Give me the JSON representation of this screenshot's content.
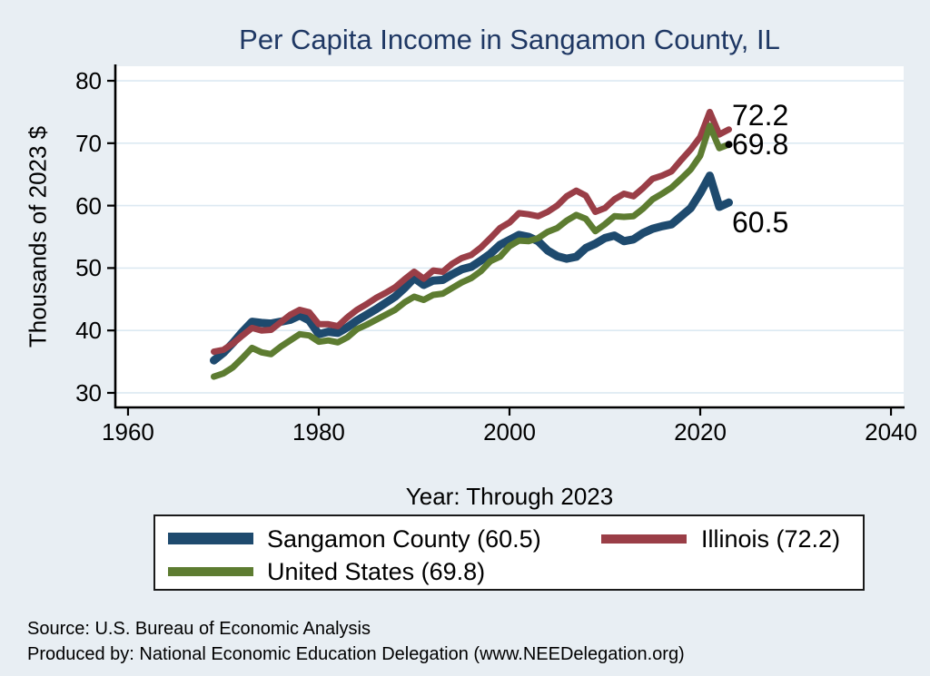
{
  "title": "Per Capita Income in Sangamon County, IL",
  "axes": {
    "y_label": "Thousands of 2023 $",
    "x_label": "Year: Through 2023",
    "y_ticks": [
      30,
      40,
      50,
      60,
      70,
      80
    ],
    "x_ticks": [
      1960,
      1980,
      2000,
      2020,
      2040
    ]
  },
  "legend": {
    "items": [
      {
        "label": "Sangamon County (60.5)",
        "color": "#1e4a6e"
      },
      {
        "label": "Illinois (72.2)",
        "color": "#9a3e47"
      },
      {
        "label": "United States (69.8)",
        "color": "#5d7c31"
      }
    ]
  },
  "footer": {
    "source_line": "Source: U.S. Bureau of Economic Analysis",
    "produced_line": "Produced by: National Economic Education Delegation (www.NEEDelegation.org)"
  },
  "colors": {
    "background": "#e8eef3",
    "plot_background": "#ffffff",
    "gridline": "#dce9f2",
    "axis": "#000000",
    "title": "#1f3864"
  },
  "chart_data": {
    "type": "line",
    "title": "Per Capita Income in Sangamon County, IL",
    "xlabel": "Year: Through 2023",
    "ylabel": "Thousands of 2023 $",
    "xlim": [
      1958.67,
      2041.33
    ],
    "ylim": [
      27.67,
      82.33
    ],
    "xticks": [
      1960,
      1980,
      2000,
      2020,
      2040
    ],
    "yticks": [
      30,
      40,
      50,
      60,
      70,
      80
    ],
    "grid": "horizontal",
    "legend_position": "bottom",
    "x": [
      1969,
      1970,
      1971,
      1972,
      1973,
      1974,
      1975,
      1976,
      1977,
      1978,
      1979,
      1980,
      1981,
      1982,
      1983,
      1984,
      1985,
      1986,
      1987,
      1988,
      1989,
      1990,
      1991,
      1992,
      1993,
      1994,
      1995,
      1996,
      1997,
      1998,
      1999,
      2000,
      2001,
      2002,
      2003,
      2004,
      2005,
      2006,
      2007,
      2008,
      2009,
      2010,
      2011,
      2012,
      2013,
      2014,
      2015,
      2016,
      2017,
      2018,
      2019,
      2020,
      2021,
      2022,
      2023
    ],
    "series": [
      {
        "name": "Sangamon County",
        "color": "#1e4a6e",
        "line_width": 9,
        "end_label": "60.5",
        "end_marker": false,
        "values": [
          35.2,
          36.4,
          38.0,
          39.8,
          41.4,
          41.2,
          41.1,
          41.4,
          41.7,
          42.4,
          41.6,
          39.4,
          39.8,
          39.6,
          40.5,
          41.6,
          42.5,
          43.4,
          44.4,
          45.4,
          46.8,
          48.4,
          47.3,
          48.0,
          48.1,
          49.0,
          49.8,
          50.2,
          51.2,
          52.3,
          53.7,
          54.5,
          55.3,
          55.0,
          54.3,
          52.8,
          51.9,
          51.5,
          51.8,
          53.2,
          53.9,
          54.8,
          55.2,
          54.3,
          54.6,
          55.6,
          56.3,
          56.7,
          57.0,
          58.3,
          59.6,
          62.0,
          64.8,
          59.8,
          60.5
        ]
      },
      {
        "name": "Illinois",
        "color": "#9a3e47",
        "line_width": 7,
        "end_label": "72.2",
        "end_marker": false,
        "values": [
          36.6,
          36.9,
          37.9,
          39.2,
          40.4,
          40.0,
          40.1,
          41.3,
          42.5,
          43.3,
          42.9,
          41.0,
          41.0,
          40.7,
          42.1,
          43.3,
          44.2,
          45.2,
          46.0,
          46.9,
          48.2,
          49.4,
          48.3,
          49.6,
          49.4,
          50.7,
          51.6,
          52.1,
          53.3,
          54.8,
          56.4,
          57.3,
          58.8,
          58.6,
          58.3,
          59.0,
          60.0,
          61.5,
          62.4,
          61.6,
          59.0,
          59.6,
          61.0,
          61.9,
          61.5,
          62.8,
          64.3,
          64.8,
          65.5,
          67.3,
          69.0,
          71.0,
          75.0,
          71.4,
          72.2
        ]
      },
      {
        "name": "United States",
        "color": "#5d7c31",
        "line_width": 7,
        "end_label": "69.8",
        "end_marker": true,
        "values": [
          32.6,
          33.1,
          34.1,
          35.6,
          37.2,
          36.5,
          36.2,
          37.4,
          38.4,
          39.4,
          39.2,
          38.2,
          38.4,
          38.1,
          38.9,
          40.2,
          40.9,
          41.7,
          42.5,
          43.3,
          44.5,
          45.4,
          44.9,
          45.7,
          45.9,
          46.8,
          47.7,
          48.4,
          49.5,
          51.1,
          51.8,
          53.5,
          54.4,
          54.3,
          54.8,
          55.8,
          56.4,
          57.6,
          58.5,
          57.9,
          55.9,
          57.0,
          58.3,
          58.2,
          58.3,
          59.5,
          61.0,
          61.9,
          62.9,
          64.3,
          65.8,
          68.0,
          72.8,
          69.2,
          69.8
        ]
      }
    ]
  }
}
